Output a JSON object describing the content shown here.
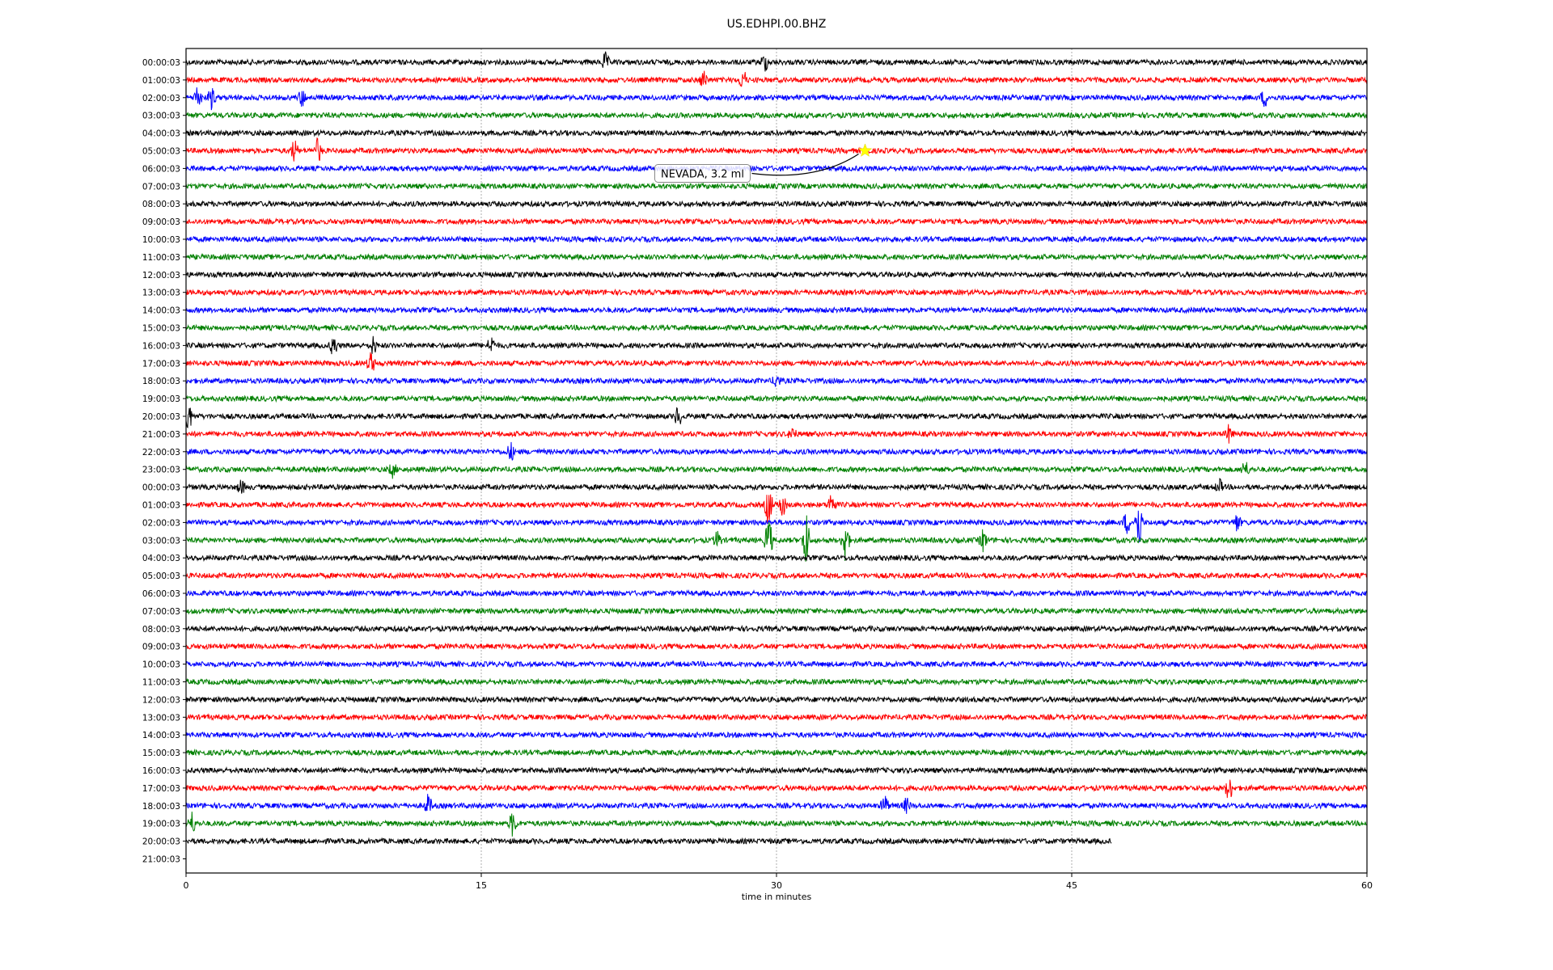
{
  "chart_data": {
    "type": "line",
    "title": "US.EDHPI.00.BHZ",
    "xlabel": "time in minutes",
    "ylabel": "",
    "xlim": [
      0,
      60
    ],
    "xticks": [
      "0",
      "15",
      "30",
      "45",
      "60"
    ],
    "xtick_values": [
      0,
      15,
      30,
      45,
      60
    ],
    "grid": "vertical dotted at 15, 30, 45",
    "colors": [
      "#000000",
      "#ff0000",
      "#0000ff",
      "#008000"
    ],
    "row_labels": [
      "00:00:03",
      "01:00:03",
      "02:00:03",
      "03:00:03",
      "04:00:03",
      "05:00:03",
      "06:00:03",
      "07:00:03",
      "08:00:03",
      "09:00:03",
      "10:00:03",
      "11:00:03",
      "12:00:03",
      "13:00:03",
      "14:00:03",
      "15:00:03",
      "16:00:03",
      "17:00:03",
      "18:00:03",
      "19:00:03",
      "20:00:03",
      "21:00:03",
      "22:00:03",
      "23:00:03",
      "00:00:03",
      "01:00:03",
      "02:00:03",
      "03:00:03",
      "04:00:03",
      "05:00:03",
      "06:00:03",
      "07:00:03",
      "08:00:03",
      "09:00:03",
      "10:00:03",
      "11:00:03",
      "12:00:03",
      "13:00:03",
      "14:00:03",
      "15:00:03",
      "16:00:03",
      "17:00:03",
      "18:00:03",
      "19:00:03",
      "20:00:03",
      "21:00:03"
    ],
    "last_trace_end_minute": 47,
    "events": [
      {
        "row": 0,
        "minute": 21.3,
        "amp": 0.5
      },
      {
        "row": 0,
        "minute": 29.4,
        "amp": 0.5
      },
      {
        "row": 1,
        "minute": 26.3,
        "amp": 0.5
      },
      {
        "row": 1,
        "minute": 28.3,
        "amp": 0.6
      },
      {
        "row": 2,
        "minute": 0.6,
        "amp": 0.7
      },
      {
        "row": 2,
        "minute": 1.3,
        "amp": 0.6
      },
      {
        "row": 2,
        "minute": 5.9,
        "amp": 0.5
      },
      {
        "row": 2,
        "minute": 54.8,
        "amp": 0.5
      },
      {
        "row": 5,
        "minute": 5.5,
        "amp": 0.6
      },
      {
        "row": 5,
        "minute": 6.7,
        "amp": 0.7
      },
      {
        "row": 16,
        "minute": 7.5,
        "amp": 0.6
      },
      {
        "row": 16,
        "minute": 9.5,
        "amp": 0.5
      },
      {
        "row": 16,
        "minute": 15.5,
        "amp": 0.5
      },
      {
        "row": 17,
        "minute": 9.4,
        "amp": 0.6
      },
      {
        "row": 18,
        "minute": 30,
        "amp": 0.4
      },
      {
        "row": 20,
        "minute": 0.1,
        "amp": 1.0
      },
      {
        "row": 20,
        "minute": 25,
        "amp": 0.6
      },
      {
        "row": 21,
        "minute": 30.8,
        "amp": 0.4
      },
      {
        "row": 21,
        "minute": 53,
        "amp": 0.5
      },
      {
        "row": 22,
        "minute": 16.5,
        "amp": 0.5
      },
      {
        "row": 23,
        "minute": 10.5,
        "amp": 0.4
      },
      {
        "row": 23,
        "minute": 53.8,
        "amp": 0.5
      },
      {
        "row": 24,
        "minute": 2.8,
        "amp": 0.4
      },
      {
        "row": 24,
        "minute": 52.5,
        "amp": 0.4
      },
      {
        "row": 25,
        "minute": 29.6,
        "amp": 1.2
      },
      {
        "row": 25,
        "minute": 30.3,
        "amp": 0.7
      },
      {
        "row": 25,
        "minute": 32.8,
        "amp": 0.7
      },
      {
        "row": 26,
        "minute": 47.8,
        "amp": 0.6
      },
      {
        "row": 26,
        "minute": 48.4,
        "amp": 1.5
      },
      {
        "row": 26,
        "minute": 53.4,
        "amp": 0.5
      },
      {
        "row": 27,
        "minute": 29.6,
        "amp": 1.4
      },
      {
        "row": 27,
        "minute": 31.5,
        "amp": 1.6
      },
      {
        "row": 27,
        "minute": 33.5,
        "amp": 1.3
      },
      {
        "row": 27,
        "minute": 27,
        "amp": 0.5
      },
      {
        "row": 27,
        "minute": 40.5,
        "amp": 0.6
      },
      {
        "row": 41,
        "minute": 53,
        "amp": 0.7
      },
      {
        "row": 42,
        "minute": 12.3,
        "amp": 0.6
      },
      {
        "row": 42,
        "minute": 35.5,
        "amp": 0.6
      },
      {
        "row": 42,
        "minute": 36.6,
        "amp": 0.4
      },
      {
        "row": 43,
        "minute": 0.3,
        "amp": 0.6
      },
      {
        "row": 43,
        "minute": 16.6,
        "amp": 0.7
      }
    ],
    "annotation": {
      "text": "NEVADA, 3.2 ml",
      "row": 5,
      "minute": 34.5,
      "marker": "star",
      "marker_color": "#ffff00"
    }
  }
}
